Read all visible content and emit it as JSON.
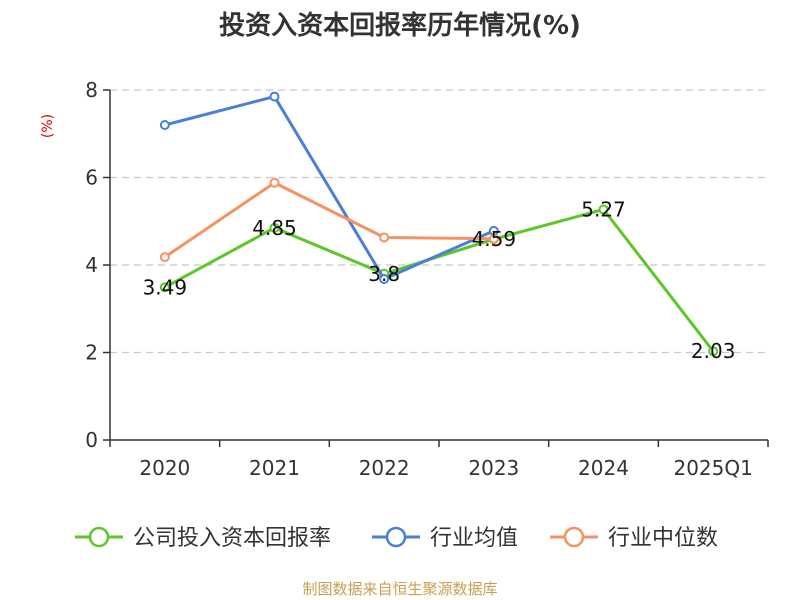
{
  "chart_data": {
    "type": "line",
    "title": "投资入资本回报率历年情况(%)",
    "ylabel": "(%)",
    "categories": [
      "2020",
      "2021",
      "2022",
      "2023",
      "2024",
      "2025Q1"
    ],
    "ylim": [
      0,
      8
    ],
    "yticks": [
      0,
      2,
      4,
      6,
      8
    ],
    "grid": true,
    "legend_position": "bottom",
    "series": [
      {
        "name": "公司投入资本回报率",
        "color": "#5cc72a",
        "values": [
          3.49,
          4.85,
          3.8,
          4.59,
          5.27,
          2.03
        ],
        "show_labels": true
      },
      {
        "name": "行业均值",
        "color": "#4a7fd8",
        "values": [
          7.2,
          7.85,
          3.68,
          4.78,
          null,
          null
        ],
        "show_labels": false
      },
      {
        "name": "行业中位数",
        "color": "#f59262",
        "values": [
          4.18,
          5.88,
          4.63,
          4.6,
          null,
          null
        ],
        "show_labels": false
      }
    ]
  },
  "source": "制图数据来自恒生聚源数据库"
}
